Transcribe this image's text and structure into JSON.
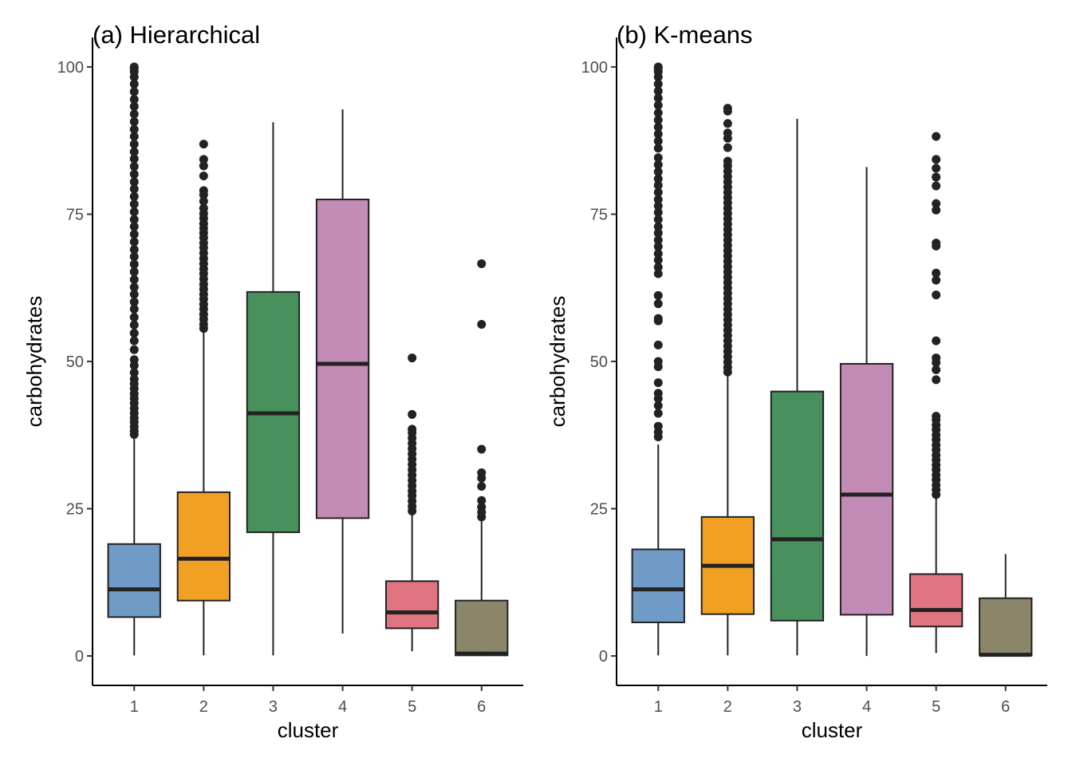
{
  "chart_data": [
    {
      "type": "boxplot",
      "title": "(a) Hierarchical",
      "xlabel": "cluster",
      "ylabel": "carbohydrates",
      "ylim": [
        -5,
        105
      ],
      "yticks": [
        0,
        25,
        50,
        75,
        100
      ],
      "categories": [
        "1",
        "2",
        "3",
        "4",
        "5",
        "6"
      ],
      "colors": [
        "#6f9bc6",
        "#f2a024",
        "#48905c",
        "#c38cb6",
        "#e07480",
        "#8b8669"
      ],
      "boxes": [
        {
          "q1": 6.6,
          "median": 11.3,
          "q3": 19.0,
          "whisker_low": 0.1,
          "whisker_high": 37.2,
          "outliers": [
            37.6,
            38.2,
            38.9,
            39.7,
            40.4,
            41.2,
            42.0,
            42.9,
            43.7,
            44.5,
            45.4,
            46.2,
            47.0,
            48.1,
            49.3,
            50.3,
            52.0,
            53.5,
            54.8,
            56.2,
            57.5,
            58.9,
            60.1,
            61.4,
            62.6,
            63.9,
            65.2,
            66.5,
            67.8,
            69.0,
            70.3,
            71.6,
            72.9,
            74.1,
            75.4,
            76.7,
            78.0,
            79.3,
            80.5,
            81.8,
            83.1,
            84.4,
            85.6,
            86.9,
            88.2,
            89.4,
            90.7,
            92.0,
            93.3,
            94.5,
            95.8,
            97.1,
            98.3,
            99.2,
            99.7,
            100.0
          ]
        },
        {
          "q1": 9.4,
          "median": 16.5,
          "q3": 27.8,
          "whisker_low": 0.1,
          "whisker_high": 55.3,
          "outliers": [
            55.6,
            56.3,
            57.2,
            58.0,
            58.9,
            59.7,
            60.6,
            61.4,
            62.3,
            63.1,
            64.0,
            64.9,
            65.7,
            66.6,
            67.5,
            68.4,
            69.3,
            70.1,
            71.0,
            71.8,
            72.6,
            73.4,
            74.3,
            75.1,
            76.0,
            77.2,
            78.3,
            79.0,
            81.5,
            83.2,
            84.3,
            86.9
          ]
        },
        {
          "q1": 21.0,
          "median": 41.2,
          "q3": 61.8,
          "whisker_low": 0.1,
          "whisker_high": 90.6,
          "outliers": []
        },
        {
          "q1": 23.4,
          "median": 49.6,
          "q3": 77.5,
          "whisker_low": 3.8,
          "whisker_high": 92.8,
          "outliers": []
        },
        {
          "q1": 4.7,
          "median": 7.4,
          "q3": 12.7,
          "whisker_low": 0.8,
          "whisker_high": 24.3,
          "outliers": [
            24.6,
            25.4,
            26.3,
            27.2,
            28.0,
            28.9,
            29.8,
            30.7,
            31.6,
            32.5,
            33.4,
            34.3,
            35.2,
            36.1,
            37.0,
            37.9,
            38.5,
            41.0,
            50.6
          ]
        },
        {
          "q1": 0.1,
          "median": 0.4,
          "q3": 9.4,
          "whisker_low": 0.0,
          "whisker_high": 23.1,
          "outliers": [
            23.6,
            24.4,
            25.3,
            26.4,
            28.8,
            30.2,
            31.1,
            35.1,
            56.3,
            66.6
          ]
        }
      ]
    },
    {
      "type": "boxplot",
      "title": "(b) K-means",
      "xlabel": "cluster",
      "ylabel": "carbohydrates",
      "ylim": [
        -5,
        105
      ],
      "yticks": [
        0,
        25,
        50,
        75,
        100
      ],
      "categories": [
        "1",
        "2",
        "3",
        "4",
        "5",
        "6"
      ],
      "colors": [
        "#6f9bc6",
        "#f2a024",
        "#48905c",
        "#c38cb6",
        "#e07480",
        "#8b8669"
      ],
      "boxes": [
        {
          "q1": 5.7,
          "median": 11.3,
          "q3": 18.1,
          "whisker_low": 0.1,
          "whisker_high": 35.9,
          "outliers": [
            37.2,
            38.0,
            39.0,
            41.2,
            42.5,
            43.7,
            44.6,
            46.4,
            49.1,
            50.0,
            52.8,
            56.9,
            57.3,
            59.8,
            61.2,
            64.9,
            66.0,
            67.2,
            68.3,
            69.5,
            70.6,
            71.8,
            72.9,
            74.1,
            75.3,
            76.4,
            77.5,
            78.7,
            79.9,
            81.0,
            82.2,
            83.4,
            84.6,
            86.2,
            87.4,
            88.6,
            89.8,
            91.0,
            92.2,
            93.5,
            94.7,
            95.9,
            97.1,
            98.3,
            99.2,
            99.7,
            100.0
          ]
        },
        {
          "q1": 7.1,
          "median": 15.3,
          "q3": 23.6,
          "whisker_low": 0.1,
          "whisker_high": 48.0,
          "outliers": [
            48.2,
            49.0,
            49.9,
            50.8,
            51.7,
            52.6,
            53.5,
            54.4,
            55.3,
            56.2,
            57.1,
            58.0,
            58.9,
            59.8,
            60.7,
            61.6,
            62.5,
            63.4,
            64.3,
            65.2,
            66.1,
            67.0,
            67.9,
            68.8,
            69.7,
            70.6,
            71.5,
            72.4,
            73.3,
            74.2,
            75.1,
            76.0,
            76.9,
            77.8,
            78.7,
            79.6,
            80.5,
            81.4,
            82.3,
            83.2,
            84.0,
            86.3,
            87.9,
            88.8,
            90.4,
            92.5,
            93.0
          ]
        },
        {
          "q1": 6.0,
          "median": 19.8,
          "q3": 44.9,
          "whisker_low": 0.1,
          "whisker_high": 91.2,
          "outliers": []
        },
        {
          "q1": 7.0,
          "median": 27.4,
          "q3": 49.6,
          "whisker_low": 0.0,
          "whisker_high": 83.0,
          "outliers": []
        },
        {
          "q1": 5.0,
          "median": 7.8,
          "q3": 13.9,
          "whisker_low": 0.5,
          "whisker_high": 27.1,
          "outliers": [
            27.4,
            28.2,
            29.0,
            29.9,
            30.7,
            31.6,
            32.4,
            33.3,
            34.1,
            35.0,
            35.8,
            36.7,
            37.5,
            38.4,
            39.2,
            40.1,
            40.7,
            46.9,
            48.6,
            49.8,
            50.6,
            53.5,
            61.3,
            63.8,
            65.0,
            69.6,
            70.1,
            75.7,
            76.8,
            79.8,
            81.3,
            82.8,
            84.3,
            88.2
          ]
        },
        {
          "q1": 0.1,
          "median": 0.2,
          "q3": 9.8,
          "whisker_low": 0.0,
          "whisker_high": 17.3,
          "outliers": []
        }
      ]
    }
  ]
}
